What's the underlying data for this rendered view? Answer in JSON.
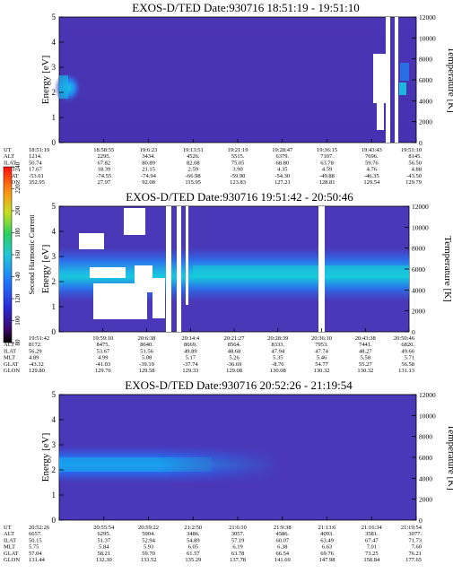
{
  "chart_data": [
    {
      "type": "heatmap",
      "title": "EXOS-D/TED   Date:930716   18:51:19 - 19:51:10",
      "ylabel": "Energy [eV]",
      "ylabel_right": "Temperature [K]",
      "ylim": [
        0,
        5
      ],
      "ylim_right": [
        0,
        12000
      ],
      "yticks": [
        "0",
        "1",
        "2",
        "3",
        "4",
        "5"
      ],
      "yticks_right": [
        "0",
        "2000",
        "4000",
        "6000",
        "8000",
        "10000",
        "12000"
      ],
      "orbit_rows": [
        "UT",
        "ALT",
        "ILAT",
        "MLT",
        "GLAT",
        "GLON"
      ],
      "orbit_cols": [
        [
          "18:51:19",
          "1214.",
          "50.74",
          "17.67",
          "-53.61",
          "352.95"
        ],
        [
          "18:58:55",
          "2295.",
          "67.82",
          "18.39",
          "-74.55",
          "27.97"
        ],
        [
          "19:6:23",
          "3434.",
          "80.89",
          "21.15",
          "-74.94",
          "92.08"
        ],
        [
          "19:13:51",
          "4526.",
          "82.08",
          "2.59",
          "-66.98",
          "115.95"
        ],
        [
          "19:21:19",
          "5515.",
          "75.05",
          "3.90",
          "-59.90",
          "123.83"
        ],
        [
          "19:28:47",
          "6379.",
          "68.80",
          "4.35",
          "-54.30",
          "127.21"
        ],
        [
          "19:36:15",
          "7107.",
          "63.78",
          "4.59",
          "-49.88",
          "128.81"
        ],
        [
          "19:43:43",
          "7696.",
          "59.76",
          "4.76",
          "-46.35",
          "129.54"
        ],
        [
          "19:51:10",
          "8145.",
          "56.50",
          "4.88",
          "-43.50",
          "129.79"
        ]
      ]
    },
    {
      "type": "heatmap",
      "title": "EXOS-D/TED   Date:930716   19:51:42 - 20:50:46",
      "ylabel": "Energy [eV]",
      "ylabel_right": "Temperature [K]",
      "ylim": [
        0,
        5
      ],
      "ylim_right": [
        0,
        12000
      ],
      "yticks": [
        "0",
        "1",
        "2",
        "3",
        "4",
        "5"
      ],
      "yticks_right": [
        "0",
        "2000",
        "4000",
        "6000",
        "8000",
        "10000",
        "12000"
      ],
      "orbit_rows": [
        "UT",
        "ALT",
        "ILAT",
        "MLT",
        "GLAT",
        "GLON"
      ],
      "orbit_cols": [
        [
          "19:51:42",
          "8172.",
          "56.29",
          "4.89",
          "-43.32",
          "129.80"
        ],
        [
          "19:59:10",
          "8475.",
          "53.67",
          "4.99",
          "-41.03",
          "129.76"
        ],
        [
          "20:6:38",
          "8640.",
          "51.56",
          "5.08",
          "-39.19",
          "129.58"
        ],
        [
          "20:14:4",
          "8669.",
          "49.89",
          "5.17",
          "-37.74",
          "129.33"
        ],
        [
          "20:21:27",
          "8564.",
          "48.68",
          "5.26",
          "-36.69",
          "129.08"
        ],
        [
          "20:28:39",
          "8333.",
          "47.94",
          "5.35",
          "-8.76",
          "130.08"
        ],
        [
          "20:36:10",
          "7953.",
          "47.74",
          "5.46",
          "54.77",
          "130.32"
        ],
        [
          "20:43:38",
          "7441.",
          "48.27",
          "5.58",
          "55.27",
          "130.32"
        ],
        [
          "20:50:46",
          "6820.",
          "49.66",
          "5.71",
          "56.58",
          "131.13"
        ]
      ],
      "colorbar": {
        "label": "Second Harmonic Current",
        "ticks": [
          "80",
          "100",
          "120",
          "140",
          "160",
          "180",
          "200",
          "220",
          "240"
        ],
        "range": [
          80,
          240
        ]
      }
    },
    {
      "type": "heatmap",
      "title": "EXOS-D/TED   Date:930716   20:52:26 - 21:19:54",
      "ylabel": "Energy [eV]",
      "ylabel_right": "Temperature [K]",
      "ylim": [
        0,
        5
      ],
      "ylim_right": [
        0,
        12000
      ],
      "yticks": [
        "0",
        "1",
        "2",
        "3",
        "4",
        "5"
      ],
      "yticks_right": [
        "0",
        "2000",
        "4000",
        "6000",
        "8000",
        "10000",
        "12000"
      ],
      "orbit_rows": [
        "UT",
        "ALT",
        "ILAT",
        "MLT",
        "GLAT",
        "GLON"
      ],
      "orbit_cols": [
        [
          "20:52:26",
          "6657.",
          "50.15",
          "5.75",
          "57.04",
          "131.44"
        ],
        [
          "20:55:54",
          "6295.",
          "51.37",
          "5.84",
          "58.21",
          "132.30"
        ],
        [
          "20:59:22",
          "5904.",
          "52.94",
          "5.93",
          "59.70",
          "133.52"
        ],
        [
          "21:2:50",
          "3486.",
          "54.89",
          "6.05",
          "61.57",
          "135.29"
        ],
        [
          "21:6:10",
          "3057.",
          "57.19",
          "6.19",
          "63.78",
          "137.78"
        ],
        [
          "21:9:38",
          "4586.",
          "60.07",
          "6.38",
          "66.54",
          "141.69"
        ],
        [
          "21:13:6",
          "4093.",
          "63.49",
          "6.63",
          "69.76",
          "147.98"
        ],
        [
          "21:16:34",
          "3581.",
          "67.47",
          "7.01",
          "73.25",
          "158.84"
        ],
        [
          "21:19:54",
          "3077.",
          "71.73",
          "7.60",
          "76.21",
          "177.65"
        ]
      ]
    }
  ]
}
